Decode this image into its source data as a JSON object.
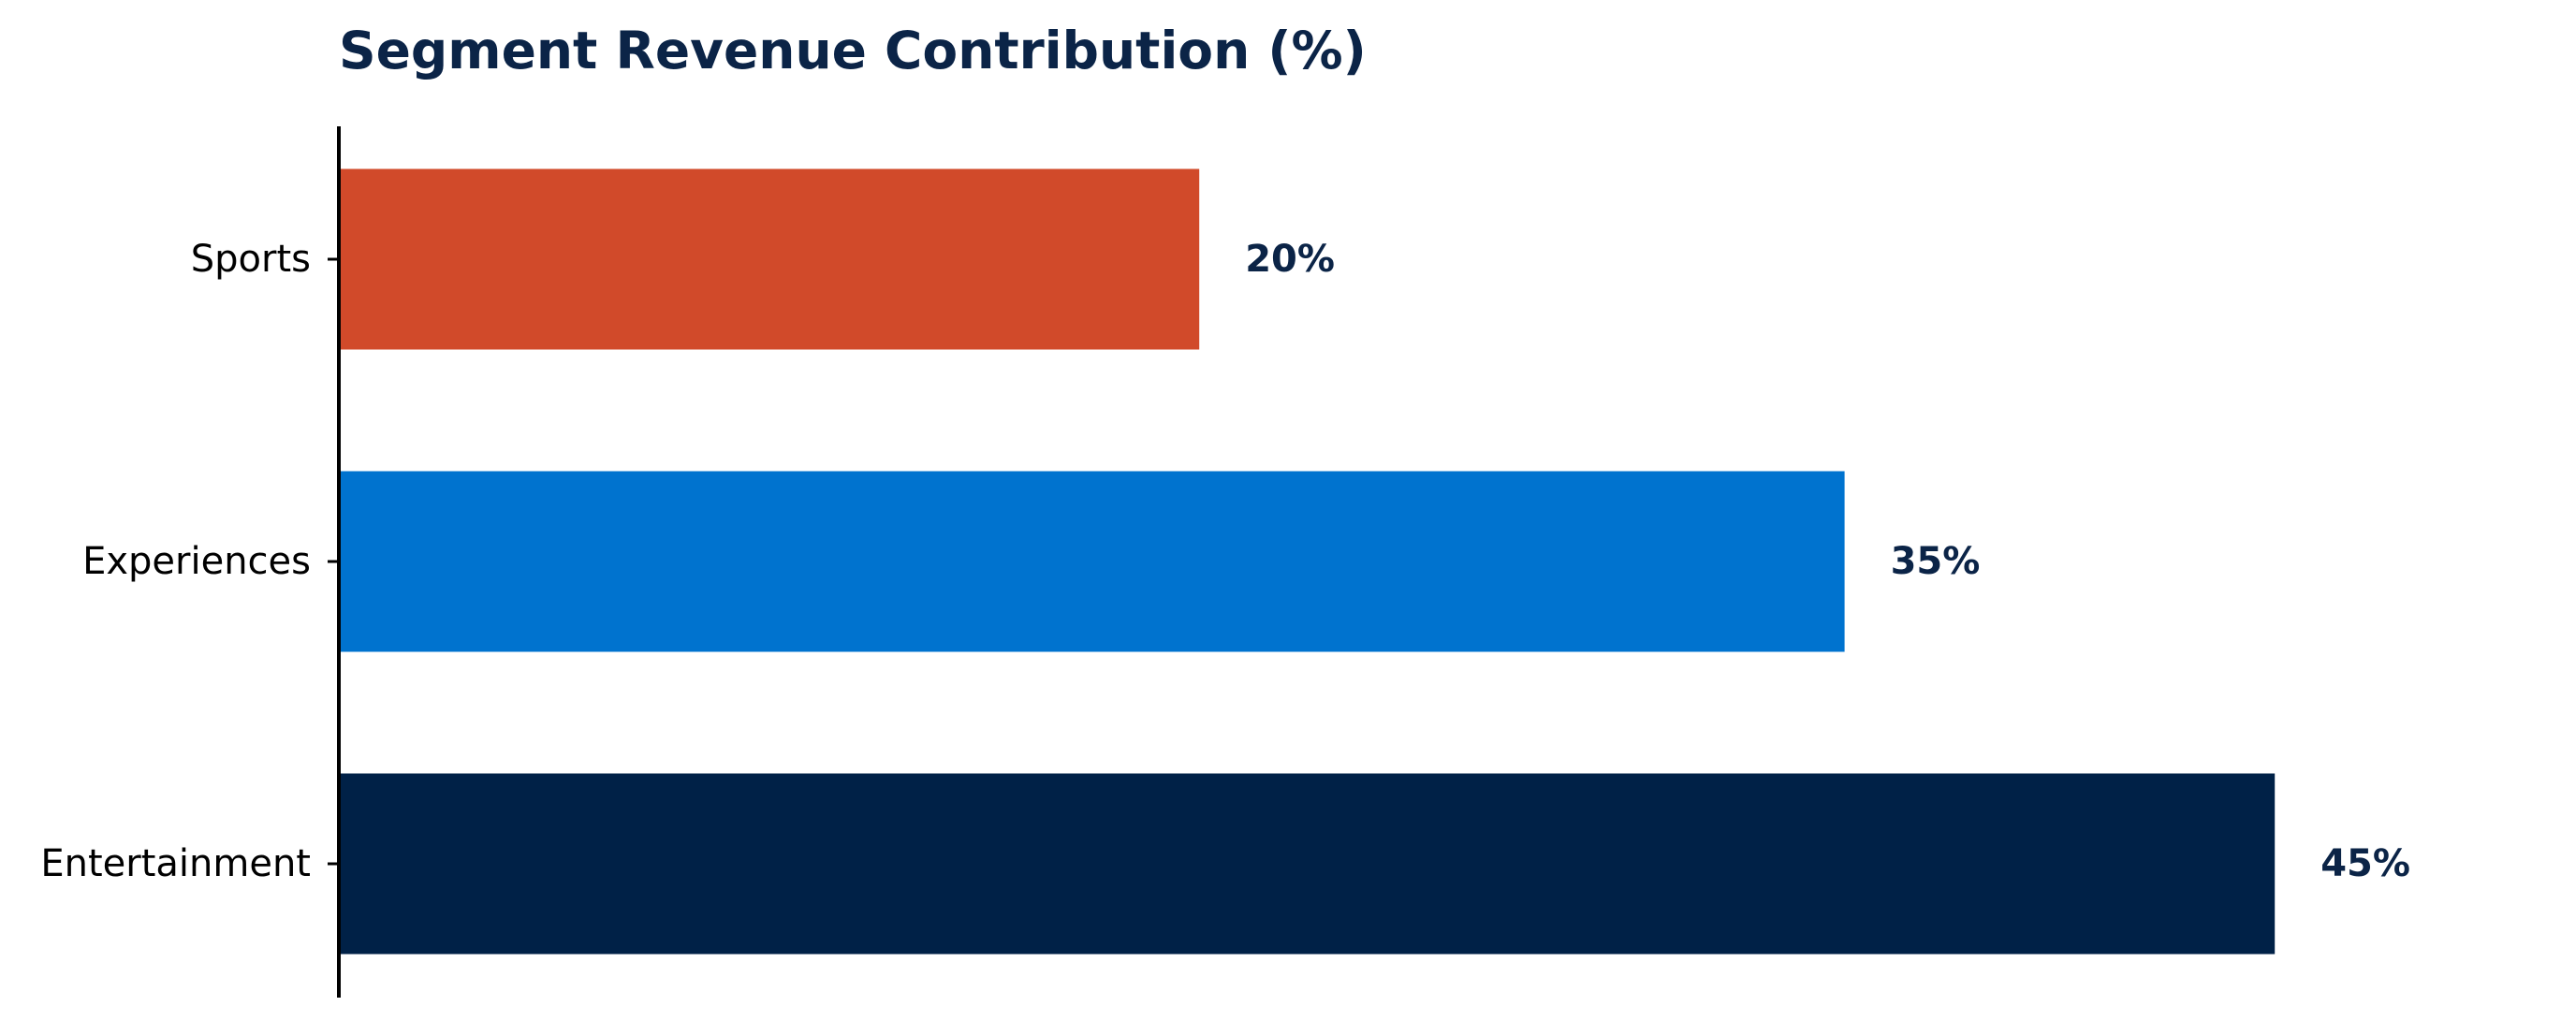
{
  "chart_data": {
    "type": "bar",
    "orientation": "horizontal",
    "title": "Segment Revenue Contribution (%)",
    "xlabel": "",
    "ylabel": "",
    "categories": [
      "Entertainment",
      "Experiences",
      "Sports"
    ],
    "values": [
      45,
      35,
      20
    ],
    "value_labels": [
      "45%",
      "35%",
      "20%"
    ],
    "xlim": [
      0,
      50
    ],
    "grid": false,
    "legend": "none"
  },
  "colors": {
    "title": "#0b2447",
    "value_label": "#0b2447",
    "axis": "#000000",
    "bars": [
      "#002147",
      "#0073cf",
      "#d14a2a"
    ]
  }
}
